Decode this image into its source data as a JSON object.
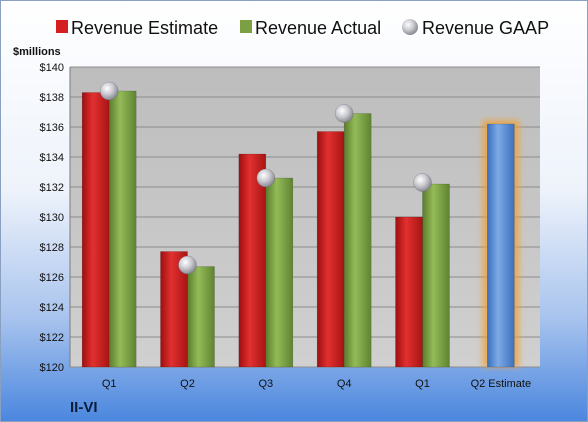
{
  "chart_data": {
    "type": "bar",
    "unit_label": "$millions",
    "company": "II-VI",
    "categories": [
      "Q1",
      "Q2",
      "Q3",
      "Q4",
      "Q1",
      "Q2 Estimate"
    ],
    "ylim": [
      120,
      140
    ],
    "yticks": [
      "$120",
      "$122",
      "$124",
      "$126",
      "$128",
      "$130",
      "$132",
      "$134",
      "$136",
      "$138",
      "$140"
    ],
    "ytick_values": [
      120,
      122,
      124,
      126,
      128,
      130,
      132,
      134,
      136,
      138,
      140
    ],
    "grid": true,
    "legend_position": "top",
    "series": [
      {
        "name": "Revenue Estimate",
        "kind": "bar",
        "color": "#d42020",
        "values": [
          138.3,
          127.7,
          134.2,
          135.7,
          130.0,
          null
        ]
      },
      {
        "name": "Revenue Actual",
        "kind": "bar",
        "color": "#7aa043",
        "values": [
          138.4,
          126.7,
          132.6,
          136.9,
          132.2,
          null
        ]
      },
      {
        "name": "Revenue GAAP",
        "kind": "marker",
        "color": "#b8b8c0",
        "values": [
          138.4,
          126.8,
          132.6,
          136.9,
          132.3,
          null
        ]
      }
    ],
    "forecast": {
      "category": "Q2 Estimate",
      "value": 136.2,
      "color": "#5a8fd6",
      "glow": "#f0a030"
    }
  }
}
